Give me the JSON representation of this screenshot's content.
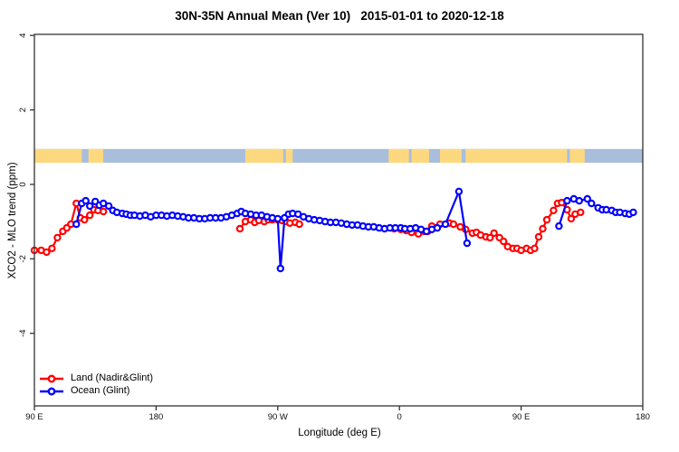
{
  "chart_data": {
    "type": "line",
    "title": "30N-35N Annual Mean (Ver 10)   2015-01-01 to 2020-12-18",
    "xlabel": "Longitude (deg E)",
    "ylabel": "XCO2 - MLO trend (ppm)",
    "xlim": [
      90,
      540
    ],
    "ylim": [
      -5.95,
      4.03
    ],
    "grid": false,
    "legend_position": "bottom-left",
    "x_ticks": [
      {
        "value": 90,
        "label": "90 E"
      },
      {
        "value": 180,
        "label": "180"
      },
      {
        "value": 270,
        "label": "90 W"
      },
      {
        "value": 360,
        "label": "0"
      },
      {
        "value": 450,
        "label": "90 E"
      },
      {
        "value": 540,
        "label": "180"
      }
    ],
    "y_ticks": [
      {
        "value": 4,
        "label": "4"
      },
      {
        "value": 2,
        "label": "2"
      },
      {
        "value": 0,
        "label": "0"
      },
      {
        "value": -2,
        "label": "-2"
      },
      {
        "value": -4,
        "label": "-4"
      }
    ],
    "colors": {
      "axis": "#333333",
      "text": "#111111",
      "land_series": "#ff0000",
      "ocean_series": "#0000ff",
      "band_land": "#fed87e",
      "band_ocean": "#a8bedc",
      "background": "#ffffff"
    },
    "map_band": {
      "value_top": 0.95,
      "value_bottom": 0.58,
      "land_segments_lon": [
        [
          90,
          125
        ],
        [
          130,
          141
        ],
        [
          246,
          274
        ],
        [
          276,
          281
        ],
        [
          352,
          367
        ],
        [
          369,
          382
        ],
        [
          390,
          406
        ],
        [
          409,
          484
        ],
        [
          486,
          497
        ]
      ]
    },
    "series": [
      {
        "name": "Land (Nadir&Glint)",
        "color": "#ff0000",
        "segments": [
          [
            [
              90,
              -1.77
            ],
            [
              95,
              -1.77
            ],
            [
              99,
              -1.82
            ],
            [
              103,
              -1.72
            ],
            [
              107,
              -1.43
            ],
            [
              111,
              -1.26
            ],
            [
              114,
              -1.17
            ],
            [
              117,
              -1.07
            ],
            [
              121,
              -0.51
            ],
            [
              124,
              -0.9
            ],
            [
              127,
              -0.95
            ],
            [
              131,
              -0.83
            ],
            [
              134,
              -0.68
            ],
            [
              137,
              -0.7
            ],
            [
              141,
              -0.73
            ]
          ],
          [
            [
              242,
              -1.19
            ],
            [
              246,
              -1.0
            ],
            [
              250,
              -0.95
            ],
            [
              253,
              -1.02
            ],
            [
              256,
              -0.97
            ],
            [
              260,
              -1.0
            ],
            [
              263,
              -0.95
            ],
            [
              266,
              -0.95
            ],
            [
              270,
              -0.95
            ],
            [
              273,
              -0.97
            ],
            [
              276,
              -1.0
            ],
            [
              279,
              -1.04
            ],
            [
              283,
              -1.02
            ],
            [
              286,
              -1.07
            ]
          ],
          [
            [
              356,
              -1.19
            ],
            [
              361,
              -1.21
            ],
            [
              365,
              -1.24
            ],
            [
              369,
              -1.29
            ],
            [
              374,
              -1.33
            ],
            [
              378,
              -1.26
            ],
            [
              381,
              -1.26
            ],
            [
              384,
              -1.12
            ],
            [
              390,
              -1.07
            ],
            [
              397,
              -1.04
            ],
            [
              400,
              -1.07
            ],
            [
              405,
              -1.14
            ],
            [
              409,
              -1.21
            ],
            [
              414,
              -1.31
            ],
            [
              417,
              -1.29
            ],
            [
              420,
              -1.36
            ],
            [
              424,
              -1.41
            ],
            [
              427,
              -1.43
            ],
            [
              430,
              -1.31
            ],
            [
              434,
              -1.43
            ],
            [
              437,
              -1.53
            ],
            [
              440,
              -1.67
            ],
            [
              444,
              -1.72
            ],
            [
              447,
              -1.72
            ],
            [
              450,
              -1.77
            ],
            [
              454,
              -1.72
            ],
            [
              457,
              -1.77
            ],
            [
              460,
              -1.72
            ],
            [
              463,
              -1.41
            ],
            [
              466,
              -1.19
            ],
            [
              469,
              -0.95
            ],
            [
              474,
              -0.7
            ],
            [
              477,
              -0.51
            ],
            [
              480,
              -0.49
            ],
            [
              484,
              -0.68
            ],
            [
              487,
              -0.92
            ],
            [
              490,
              -0.8
            ],
            [
              494,
              -0.75
            ]
          ]
        ]
      },
      {
        "name": "Ocean (Glint)",
        "color": "#0000ff",
        "segments": [
          [
            [
              121,
              -1.07
            ],
            [
              125,
              -0.51
            ],
            [
              128,
              -0.44
            ],
            [
              131,
              -0.58
            ],
            [
              135,
              -0.46
            ],
            [
              138,
              -0.56
            ],
            [
              141,
              -0.51
            ],
            [
              145,
              -0.58
            ],
            [
              148,
              -0.7
            ],
            [
              151,
              -0.75
            ],
            [
              155,
              -0.78
            ],
            [
              158,
              -0.8
            ],
            [
              161,
              -0.83
            ],
            [
              164,
              -0.83
            ],
            [
              168,
              -0.85
            ],
            [
              172,
              -0.83
            ],
            [
              176,
              -0.87
            ],
            [
              180,
              -0.83
            ],
            [
              184,
              -0.83
            ],
            [
              188,
              -0.85
            ],
            [
              192,
              -0.83
            ],
            [
              196,
              -0.85
            ],
            [
              200,
              -0.87
            ],
            [
              204,
              -0.9
            ],
            [
              208,
              -0.9
            ],
            [
              212,
              -0.92
            ],
            [
              216,
              -0.92
            ],
            [
              220,
              -0.9
            ],
            [
              224,
              -0.9
            ],
            [
              228,
              -0.9
            ],
            [
              232,
              -0.87
            ],
            [
              236,
              -0.83
            ],
            [
              240,
              -0.78
            ],
            [
              243,
              -0.73
            ],
            [
              246,
              -0.78
            ],
            [
              250,
              -0.8
            ],
            [
              254,
              -0.83
            ],
            [
              258,
              -0.83
            ],
            [
              262,
              -0.87
            ],
            [
              266,
              -0.9
            ],
            [
              270,
              -0.92
            ],
            [
              272,
              -2.26
            ],
            [
              275,
              -0.9
            ],
            [
              278,
              -0.8
            ],
            [
              281,
              -0.78
            ],
            [
              285,
              -0.8
            ],
            [
              289,
              -0.87
            ],
            [
              293,
              -0.92
            ],
            [
              297,
              -0.95
            ],
            [
              301,
              -0.97
            ],
            [
              305,
              -1.0
            ],
            [
              309,
              -1.02
            ],
            [
              313,
              -1.02
            ],
            [
              317,
              -1.04
            ],
            [
              321,
              -1.07
            ],
            [
              325,
              -1.09
            ],
            [
              329,
              -1.09
            ],
            [
              333,
              -1.12
            ],
            [
              337,
              -1.14
            ],
            [
              341,
              -1.14
            ],
            [
              345,
              -1.17
            ],
            [
              349,
              -1.19
            ],
            [
              353,
              -1.17
            ],
            [
              357,
              -1.17
            ],
            [
              361,
              -1.17
            ],
            [
              364,
              -1.19
            ],
            [
              368,
              -1.19
            ],
            [
              372,
              -1.17
            ],
            [
              376,
              -1.21
            ],
            [
              380,
              -1.26
            ],
            [
              384,
              -1.21
            ],
            [
              388,
              -1.17
            ],
            [
              394,
              -1.07
            ],
            [
              404,
              -0.19
            ],
            [
              410,
              -1.58
            ]
          ],
          [
            [
              478,
              -1.12
            ],
            [
              484,
              -0.44
            ],
            [
              489,
              -0.39
            ],
            [
              493,
              -0.44
            ],
            [
              499,
              -0.39
            ],
            [
              502,
              -0.51
            ],
            [
              507,
              -0.63
            ],
            [
              510,
              -0.68
            ],
            [
              513,
              -0.68
            ],
            [
              517,
              -0.7
            ],
            [
              520,
              -0.75
            ],
            [
              523,
              -0.75
            ],
            [
              527,
              -0.78
            ],
            [
              530,
              -0.8
            ],
            [
              533,
              -0.75
            ]
          ]
        ]
      }
    ]
  }
}
